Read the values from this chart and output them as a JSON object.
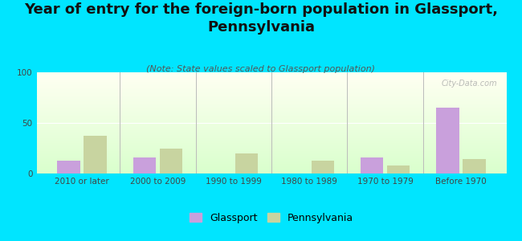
{
  "title": "Year of entry for the foreign-born population in Glassport,\nPennsylvania",
  "subtitle": "(Note: State values scaled to Glassport population)",
  "categories": [
    "2010 or later",
    "2000 to 2009",
    "1990 to 1999",
    "1980 to 1989",
    "1970 to 1979",
    "Before 1970"
  ],
  "glassport_values": [
    13,
    16,
    0,
    0,
    16,
    65
  ],
  "pennsylvania_values": [
    37,
    25,
    20,
    13,
    8,
    14
  ],
  "glassport_color": "#c9a0dc",
  "pennsylvania_color": "#c8d4a0",
  "background_color": "#00e5ff",
  "ylim": [
    0,
    100
  ],
  "yticks": [
    0,
    50,
    100
  ],
  "title_fontsize": 13,
  "subtitle_fontsize": 8,
  "tick_fontsize": 7.5,
  "legend_fontsize": 9,
  "watermark": "City-Data.com"
}
